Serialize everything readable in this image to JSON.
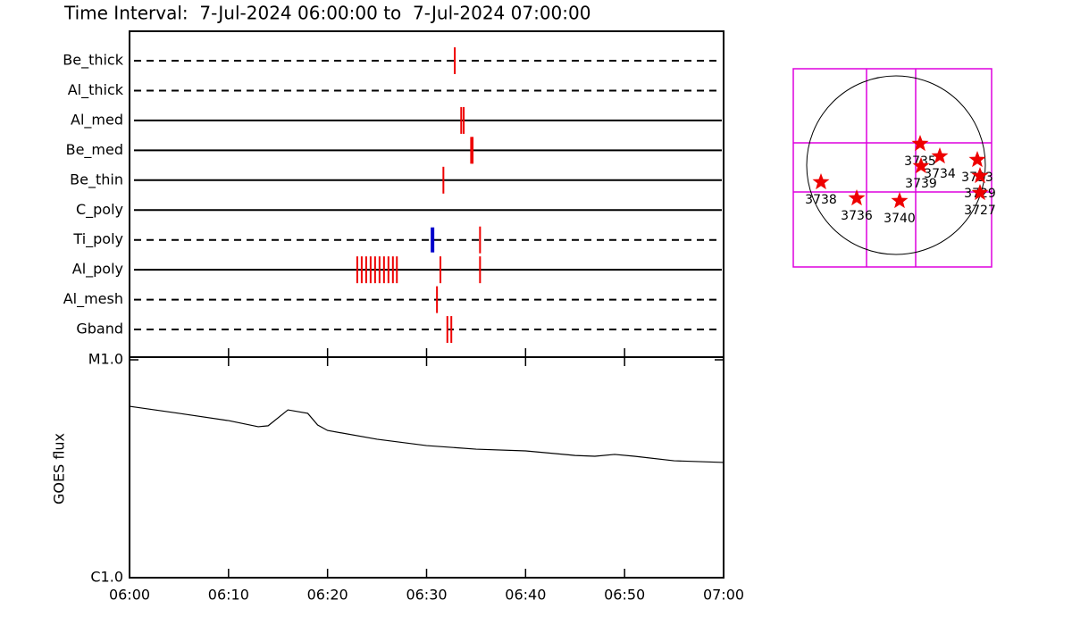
{
  "chart_data": [
    {
      "type": "timeline",
      "title": "Time Interval:  7-Jul-2024 06:00:00 to  7-Jul-2024 07:00:00",
      "xlim": [
        0,
        60
      ],
      "xticks": [
        0,
        10,
        20,
        30,
        40,
        50,
        60
      ],
      "event_color": "#ee0000",
      "channels": [
        {
          "name": "Be_thick",
          "line": "dashed",
          "events": [
            32.85
          ]
        },
        {
          "name": "Al_thick",
          "line": "dashed",
          "events": []
        },
        {
          "name": "Al_med",
          "line": "solid",
          "events": [
            33.5,
            33.75
          ]
        },
        {
          "name": "Be_med",
          "line": "solid",
          "events": [
            34.5,
            34.65
          ]
        },
        {
          "name": "Be_thin",
          "line": "solid",
          "events": [
            31.7
          ]
        },
        {
          "name": "C_poly",
          "line": "solid",
          "events": []
        },
        {
          "name": "Ti_poly",
          "line": "dashed",
          "events": [
            35.4
          ],
          "highlight": {
            "time": 30.6,
            "color": "#0000cc"
          }
        },
        {
          "name": "Al_poly",
          "line": "solid",
          "events": [
            23.0,
            23.45,
            23.9,
            24.35,
            24.8,
            25.25,
            25.7,
            26.15,
            26.6,
            27.0,
            31.4,
            35.4
          ]
        },
        {
          "name": "Al_mesh",
          "line": "dashed",
          "events": [
            31.05
          ]
        },
        {
          "name": "Gband",
          "line": "dashed",
          "events": [
            32.1,
            32.5
          ]
        }
      ]
    },
    {
      "type": "line",
      "ylabel": "GOES flux",
      "log": true,
      "x": [
        0,
        5,
        10,
        13,
        14,
        16,
        18,
        19,
        20,
        25,
        30,
        35,
        40,
        45,
        47,
        49,
        51,
        55,
        60
      ],
      "values": [
        6.12e-06,
        5.68e-06,
        5.26e-06,
        4.93e-06,
        4.98e-06,
        5.89e-06,
        5.68e-06,
        5.02e-06,
        4.74e-06,
        4.32e-06,
        4.04e-06,
        3.89e-06,
        3.82e-06,
        3.64e-06,
        3.61e-06,
        3.68e-06,
        3.61e-06,
        3.44e-06,
        3.38e-06
      ],
      "color": "#000000",
      "xlim": [
        0,
        60
      ],
      "xticks": [
        {
          "value": 0,
          "label": "06:00"
        },
        {
          "value": 10,
          "label": "06:10"
        },
        {
          "value": 20,
          "label": "06:20"
        },
        {
          "value": 30,
          "label": "06:30"
        },
        {
          "value": 40,
          "label": "06:40"
        },
        {
          "value": 50,
          "label": "06:50"
        },
        {
          "value": 60,
          "label": "07:00"
        }
      ],
      "ylim": [
        1e-06,
        1e-05
      ],
      "yticks": [
        {
          "value": 1e-06,
          "label": "C1.0"
        },
        {
          "value": 1e-05,
          "label": "M1.0"
        }
      ]
    },
    {
      "type": "map",
      "grid_color": "#dd00dd",
      "star_color": "#ee0000",
      "regions": [
        {
          "label": "3735"
        },
        {
          "label": "3734"
        },
        {
          "label": "3739"
        },
        {
          "label": "3733"
        },
        {
          "label": "3729"
        },
        {
          "label": "3727"
        },
        {
          "label": "3738"
        },
        {
          "label": "3736"
        },
        {
          "label": "3740"
        }
      ]
    }
  ]
}
